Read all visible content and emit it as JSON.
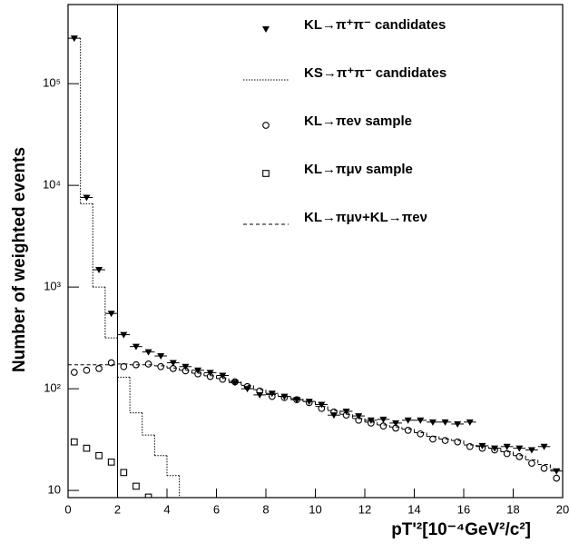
{
  "chart_data": {
    "type": "histogram",
    "x_label": "pT'²[10⁻⁴GeV²/c²]",
    "y_label": "Number of weighted events",
    "log_y": true,
    "legend_position": "upper right",
    "xlim": [
      0,
      20
    ],
    "ylim": [
      8.5,
      600000
    ],
    "xticks": [
      0,
      2,
      4,
      6,
      8,
      10,
      12,
      14,
      16,
      18,
      20
    ],
    "yticks": [
      10,
      {
        "value": 100,
        "label": "10²"
      },
      {
        "value": 1000,
        "label": "10³"
      },
      {
        "value": 10000,
        "label": "10⁴"
      },
      {
        "value": 100000,
        "label": "10⁵"
      }
    ],
    "vline": 2,
    "bins": [
      0,
      0.5,
      1,
      1.5,
      2,
      2.5,
      3,
      3.5,
      4,
      4.5,
      5,
      5.5,
      6,
      6.5,
      7,
      7.5,
      8,
      8.5,
      9,
      9.5,
      10,
      10.5,
      11,
      11.5,
      12,
      12.5,
      13,
      13.5,
      14,
      14.5,
      15,
      15.5,
      16,
      16.5,
      17,
      17.5,
      18,
      18.5,
      19,
      19.5,
      20
    ],
    "series": [
      {
        "name": "KL→π⁺π⁻ candidates",
        "style": "triangle",
        "color": "#000000",
        "values": [
          280000,
          7600,
          1480,
          550,
          340,
          260,
          230,
          210,
          180,
          165,
          152,
          144,
          135,
          115,
          100,
          87,
          90,
          84,
          78,
          75,
          70,
          55,
          60,
          54,
          49,
          50,
          46,
          49,
          49,
          47,
          47,
          45,
          47,
          27.5,
          26,
          27,
          26,
          25,
          27,
          15.5
        ]
      },
      {
        "name": "KS→π⁺π⁻ candidates",
        "style": "dotted",
        "color": "#000000",
        "values": [
          280000,
          6600,
          1000,
          316,
          130,
          58,
          35,
          22,
          14,
          5,
          null,
          null,
          null,
          null,
          null,
          null,
          null,
          null,
          null,
          null,
          null,
          null,
          null,
          null,
          null,
          null,
          null,
          null,
          null,
          null,
          null,
          null,
          null,
          null,
          null,
          null,
          null,
          null,
          null,
          null
        ]
      },
      {
        "name": "KL→πeν sample",
        "style": "circle",
        "color": "#000000",
        "values": [
          145,
          152,
          158,
          180,
          165,
          172,
          175,
          165,
          158,
          150,
          140,
          132,
          124,
          117,
          105,
          95,
          84,
          82,
          78,
          73,
          64,
          59,
          55,
          49,
          46,
          43,
          41,
          39,
          36,
          32,
          31,
          30,
          27,
          26,
          25,
          23,
          21.5,
          18.5,
          16.5,
          13.2
        ]
      },
      {
        "name": "KL→πμν sample",
        "style": "square",
        "color": "#000000",
        "values": [
          30,
          26,
          22,
          19,
          15,
          11,
          8.6,
          null,
          null,
          null,
          null,
          null,
          null,
          null,
          null,
          null,
          null,
          null,
          null,
          null,
          null,
          null,
          null,
          null,
          null,
          null,
          null,
          null,
          null,
          null,
          null,
          null,
          null,
          null,
          null,
          null,
          null,
          null,
          null,
          null
        ]
      },
      {
        "name": "KL→πμν+KL→πeν",
        "style": "dashed",
        "color": "#000000",
        "values": [
          172,
          172,
          172,
          172,
          175,
          172,
          172,
          168,
          160,
          152,
          142,
          134,
          126,
          118,
          108,
          98,
          88,
          84,
          80,
          75,
          67,
          61,
          56,
          51,
          47,
          44,
          42,
          40,
          37,
          34,
          32,
          31,
          28,
          27,
          26,
          24,
          22,
          20,
          18,
          16
        ]
      }
    ]
  }
}
